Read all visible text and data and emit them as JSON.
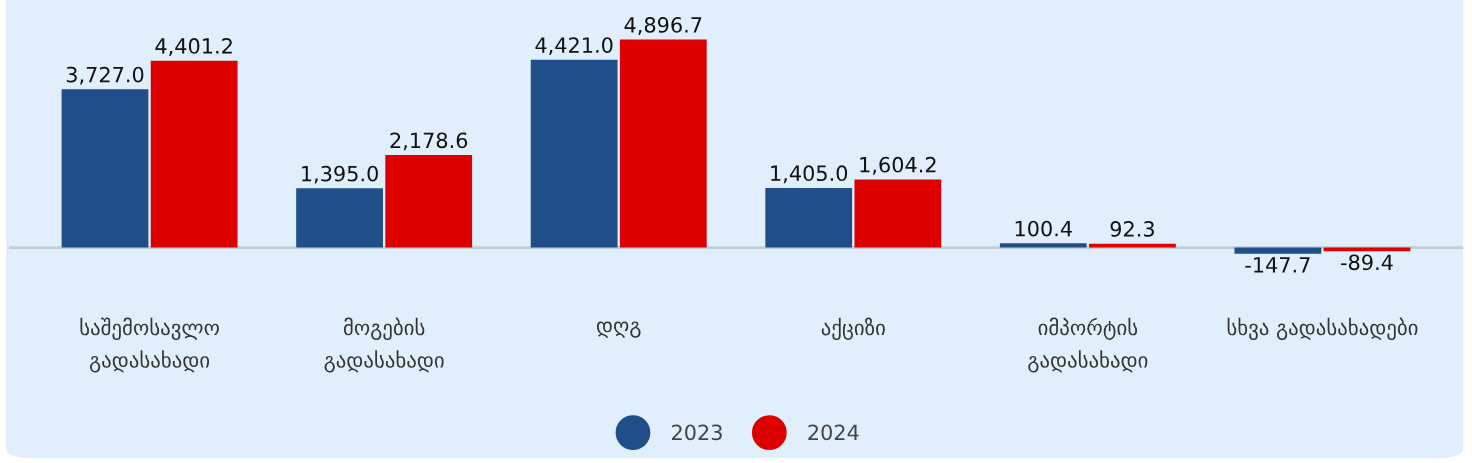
{
  "chart_data": {
    "type": "bar",
    "categories": [
      "საშემოსავლო\nგადასახადი",
      "მოგების\nგადასახადი",
      "დღგ",
      "აქციზი",
      "იმპორტის\nგადასახადი",
      "სხვა გადასახადები"
    ],
    "series": [
      {
        "name": "2023",
        "color": "#1f4e89",
        "values": [
          3727.0,
          1395.0,
          4421.0,
          1405.0,
          100.4,
          -147.7
        ],
        "value_labels": [
          "3,727.0",
          "1,395.0",
          "4,421.0",
          "1,405.0",
          "100.4",
          "-147.7"
        ]
      },
      {
        "name": "2024",
        "color": "#dd0000",
        "values": [
          4401.2,
          2178.6,
          4896.7,
          1604.2,
          92.3,
          -89.4
        ],
        "value_labels": [
          "4,401.2",
          "2,178.6",
          "4,896.7",
          "1,604.2",
          "92.3",
          "-89.4"
        ]
      }
    ],
    "legend": "bottom",
    "grid": false
  }
}
